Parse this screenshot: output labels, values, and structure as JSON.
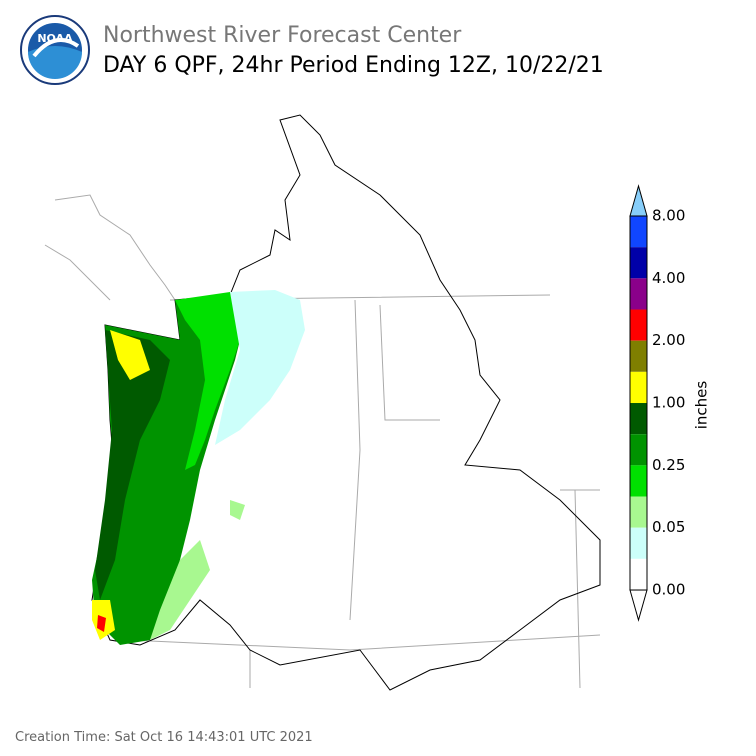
{
  "header": {
    "title": "Northwest River Forecast Center",
    "subtitle": "DAY 6 QPF, 24hr Period Ending 12Z, 10/22/21",
    "logo_text": "NOAA"
  },
  "legend": {
    "unit": "inches",
    "labels": [
      "8.00",
      "4.00",
      "2.00",
      "1.00",
      "0.25",
      "0.05",
      "0.00"
    ],
    "colors": [
      "#87cefa",
      "#1046ff",
      "#0000a8",
      "#8a008a",
      "#ff0000",
      "#7f7f00",
      "#ffff00",
      "#005a00",
      "#009300",
      "#00e000",
      "#a8f890",
      "#ccfffa",
      "#ffffff",
      "#ffffff"
    ]
  },
  "footer": {
    "creation_time": "Creation Time: Sat Oct 16 14:43:01 UTC 2021"
  }
}
